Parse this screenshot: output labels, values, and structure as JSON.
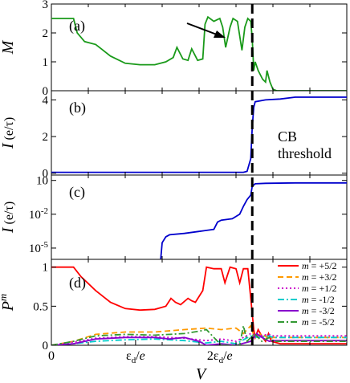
{
  "chart_data": [
    {
      "panel": "(a)",
      "type": "line",
      "ylabel": "M",
      "xlim": [
        0,
        4
      ],
      "ylim": [
        0,
        3
      ],
      "y_ticks": [
        {
          "v": 0,
          "label": "0"
        },
        {
          "v": 1,
          "label": "1"
        },
        {
          "v": 2,
          "label": "2"
        },
        {
          "v": 3,
          "label": "3"
        }
      ],
      "series": [
        {
          "color": "#1a9a1a",
          "x": [
            0,
            0.3,
            0.35,
            0.45,
            0.6,
            0.8,
            1.0,
            1.2,
            1.4,
            1.55,
            1.65,
            1.7,
            1.78,
            1.85,
            1.9,
            1.98,
            2.05,
            2.08,
            2.12,
            2.2,
            2.28,
            2.32,
            2.36,
            2.42,
            2.46,
            2.52,
            2.58,
            2.62,
            2.66,
            2.7,
            2.72,
            2.74,
            2.76,
            2.8,
            2.86,
            2.9,
            2.92,
            2.96,
            3.0,
            3.05,
            3.1,
            4.0
          ],
          "y": [
            2.5,
            2.5,
            2.0,
            1.7,
            1.6,
            1.2,
            0.95,
            0.9,
            0.9,
            1.0,
            1.15,
            1.5,
            1.1,
            1.05,
            1.45,
            1.05,
            1.1,
            2.3,
            2.55,
            2.4,
            2.5,
            2.2,
            1.5,
            2.2,
            2.5,
            2.4,
            1.4,
            2.2,
            2.5,
            2.4,
            1.8,
            0.7,
            1.0,
            0.7,
            0.4,
            0.3,
            0.7,
            0.3,
            0.05,
            0.0,
            0.0,
            0.0
          ]
        }
      ]
    },
    {
      "panel": "(b)",
      "type": "line",
      "ylabel": "I (e/τ)",
      "xlim": [
        0,
        4
      ],
      "ylim": [
        -0.1,
        4.5
      ],
      "y_ticks": [
        {
          "v": 0,
          "label": "0"
        },
        {
          "v": 2,
          "label": "2"
        },
        {
          "v": 4,
          "label": "4"
        }
      ],
      "series": [
        {
          "color": "#0000cc",
          "x": [
            0,
            2.6,
            2.65,
            2.7,
            2.72,
            2.74,
            2.76,
            2.9,
            3.1,
            3.3,
            4.0
          ],
          "y": [
            0.05,
            0.05,
            0.1,
            0.8,
            2.5,
            3.6,
            3.9,
            4.0,
            4.05,
            4.15,
            4.15
          ]
        }
      ]
    },
    {
      "panel": "(c)",
      "type": "line",
      "ylabel": "I (e/τ)",
      "yscale": "log",
      "xlim": [
        0,
        4
      ],
      "ylim": [
        1e-06,
        30
      ],
      "y_ticks": [
        {
          "v": 10,
          "label": "10"
        },
        {
          "v": 0.01,
          "label": "10⁻²"
        },
        {
          "v": 1e-05,
          "label": "10⁻⁵"
        }
      ],
      "series": [
        {
          "color": "#0000cc",
          "x": [
            1.48,
            1.5,
            1.55,
            1.6,
            1.8,
            2.0,
            2.2,
            2.25,
            2.3,
            2.45,
            2.55,
            2.6,
            2.65,
            2.7,
            2.72,
            2.76,
            2.9,
            3.3,
            4.0
          ],
          "y": [
            1e-06,
            3e-05,
            0.0001,
            0.00015,
            0.0002,
            0.0003,
            0.00045,
            0.002,
            0.003,
            0.004,
            0.01,
            0.05,
            0.2,
            0.5,
            3,
            5,
            5.5,
            6,
            6
          ]
        }
      ]
    },
    {
      "panel": "(d)",
      "type": "line",
      "ylabel": "P^m",
      "xlabel": "V",
      "xlim": [
        0,
        4
      ],
      "ylim": [
        0,
        1.1
      ],
      "y_ticks": [
        {
          "v": 0,
          "label": "0"
        },
        {
          "v": 0.5,
          "label": "0.5"
        },
        {
          "v": 1,
          "label": "1"
        }
      ],
      "x_ticks": [
        {
          "v": 0,
          "label": "0"
        },
        {
          "v": 1.14,
          "label": "εd/e"
        },
        {
          "v": 2.28,
          "label": "2εd/e"
        },
        {
          "v": 3.0,
          "label": ""
        },
        {
          "v": 4.0,
          "label": ""
        }
      ],
      "series": [
        {
          "name": "m = +5/2",
          "color": "#ff0000",
          "dash": "",
          "x": [
            0,
            0.3,
            0.4,
            0.6,
            0.8,
            1.0,
            1.2,
            1.4,
            1.55,
            1.62,
            1.68,
            1.75,
            1.85,
            1.9,
            1.95,
            2.05,
            2.1,
            2.2,
            2.3,
            2.35,
            2.42,
            2.5,
            2.55,
            2.6,
            2.66,
            2.7,
            2.74,
            2.76,
            2.8,
            2.86,
            2.9,
            2.94,
            2.98,
            3.1,
            4.0
          ],
          "y": [
            1.0,
            1.0,
            0.88,
            0.7,
            0.55,
            0.47,
            0.45,
            0.46,
            0.5,
            0.6,
            0.55,
            0.52,
            0.6,
            0.57,
            0.55,
            0.7,
            1.0,
            0.98,
            0.98,
            0.8,
            1.0,
            0.98,
            0.8,
            0.98,
            0.98,
            0.6,
            0.2,
            0.1,
            0.2,
            0.1,
            0.05,
            0.15,
            0.05,
            0.02,
            0.02
          ]
        },
        {
          "name": "m = +3/2",
          "color": "#ff9900",
          "dash": "7,4",
          "x": [
            0,
            0.3,
            0.6,
            1.0,
            1.4,
            1.8,
            2.1,
            2.3,
            2.5,
            2.6,
            2.7,
            2.75,
            2.85,
            2.95,
            3.0,
            4.0
          ],
          "y": [
            0.0,
            0.05,
            0.14,
            0.17,
            0.17,
            0.2,
            0.22,
            0.2,
            0.22,
            0.15,
            0.25,
            0.1,
            0.15,
            0.08,
            0.1,
            0.1
          ]
        },
        {
          "name": "m = +1/2",
          "color": "#cc00cc",
          "dash": "2,3",
          "x": [
            0,
            0.3,
            0.6,
            1.0,
            1.4,
            1.8,
            2.1,
            2.3,
            2.5,
            2.7,
            2.8,
            2.95,
            3.0,
            4.0
          ],
          "y": [
            0.0,
            0.04,
            0.09,
            0.11,
            0.11,
            0.09,
            0.06,
            0.08,
            0.05,
            0.15,
            0.12,
            0.14,
            0.12,
            0.12
          ]
        },
        {
          "name": "m = -1/2",
          "color": "#00cccc",
          "dash": "8,3,2,3",
          "x": [
            0,
            0.3,
            0.6,
            1.0,
            1.4,
            1.8,
            2.1,
            2.3,
            2.5,
            2.7,
            2.8,
            2.95,
            3.0,
            4.0
          ],
          "y": [
            0.0,
            0.02,
            0.05,
            0.07,
            0.08,
            0.06,
            0.03,
            0.05,
            0.02,
            0.12,
            0.1,
            0.12,
            0.1,
            0.1
          ]
        },
        {
          "name": "m = -3/2",
          "color": "#8800cc",
          "dash": "",
          "x": [
            0,
            0.3,
            0.6,
            1.0,
            1.4,
            1.6,
            1.8,
            2.0,
            2.1,
            2.3,
            2.5,
            2.7,
            2.78,
            2.85,
            2.95,
            3.0,
            4.0
          ],
          "y": [
            0.0,
            0.02,
            0.08,
            0.1,
            0.1,
            0.08,
            0.1,
            0.05,
            0.0,
            0.02,
            0.0,
            0.05,
            0.15,
            0.1,
            0.05,
            0.06,
            0.06
          ]
        },
        {
          "name": "m = -5/2",
          "color": "#339933",
          "dash": "8,3,2,3",
          "x": [
            0,
            0.3,
            0.6,
            1.0,
            1.4,
            1.8,
            2.0,
            2.1,
            2.3,
            2.55,
            2.6,
            2.65,
            2.75,
            2.85,
            2.95,
            3.0,
            4.0
          ],
          "y": [
            0.0,
            0.05,
            0.12,
            0.14,
            0.13,
            0.15,
            0.18,
            0.2,
            0.0,
            0.0,
            0.25,
            0.05,
            0.15,
            0.05,
            0.1,
            0.05,
            0.05
          ]
        }
      ]
    }
  ],
  "annotations": {
    "cb_threshold": "CB\nthreshold",
    "threshold_x": 2.72,
    "arrow_label": ""
  },
  "labels": {
    "panel_a": "(a)",
    "panel_b": "(b)",
    "panel_c": "(c)",
    "panel_d": "(d)",
    "cb_line1": "CB",
    "cb_line2": "threshold",
    "x_axis": "V"
  }
}
